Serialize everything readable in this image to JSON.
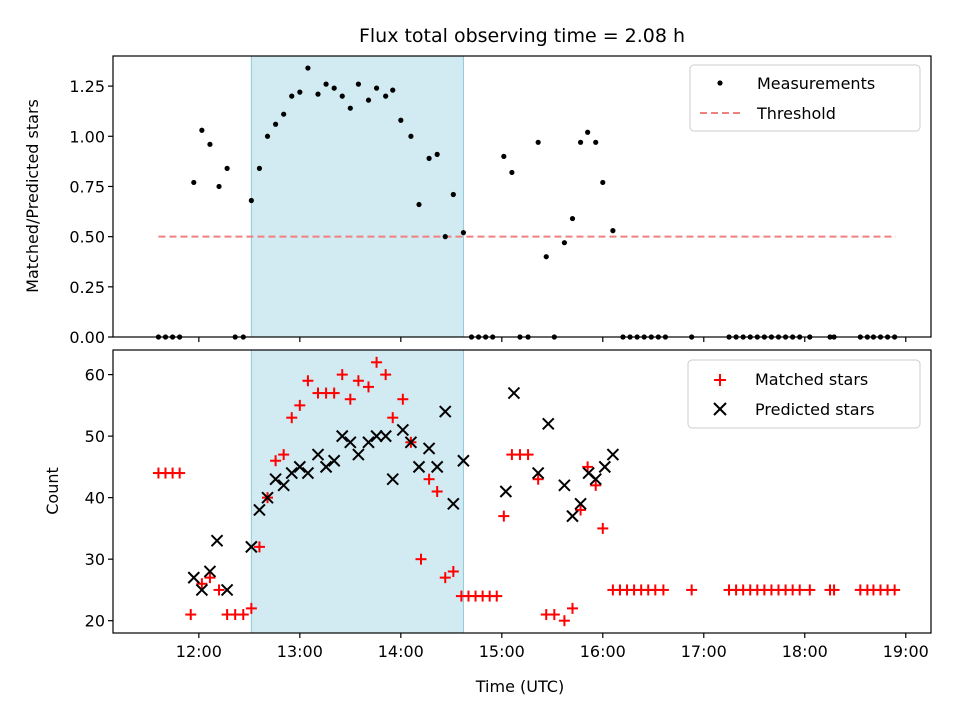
{
  "chart_data": {
    "type": "scatter",
    "title": "Flux total observing time = 2.08 h",
    "xlabel": "Time (UTC)",
    "x_unit": "hours",
    "x_range": [
      11.15,
      19.25
    ],
    "x_ticks": [
      {
        "v": 12,
        "label": "12:00"
      },
      {
        "v": 13,
        "label": "13:00"
      },
      {
        "v": 14,
        "label": "14:00"
      },
      {
        "v": 15,
        "label": "15:00"
      },
      {
        "v": 16,
        "label": "16:00"
      },
      {
        "v": 17,
        "label": "17:00"
      },
      {
        "v": 18,
        "label": "18:00"
      },
      {
        "v": 19,
        "label": "19:00"
      }
    ],
    "shaded_span": [
      12.52,
      14.62
    ],
    "colors": {
      "measurements": "#000000",
      "threshold": "#f08080",
      "matched": "#ff0000",
      "predicted": "#000000",
      "span": "#add8e6"
    },
    "panels": [
      {
        "ylabel": "Matched/Predicted stars",
        "ylim": [
          0,
          1.4
        ],
        "y_ticks": [
          {
            "v": 0,
            "label": "0.00"
          },
          {
            "v": 0.25,
            "label": "0.25"
          },
          {
            "v": 0.5,
            "label": "0.50"
          },
          {
            "v": 0.75,
            "label": "0.75"
          },
          {
            "v": 1.0,
            "label": "1.00"
          },
          {
            "v": 1.25,
            "label": "1.25"
          }
        ],
        "legend": [
          "Measurements",
          "Threshold"
        ],
        "threshold": {
          "x": [
            11.6,
            18.9
          ],
          "y": 0.5
        },
        "measurements": [
          [
            11.6,
            0
          ],
          [
            11.67,
            0
          ],
          [
            11.74,
            0
          ],
          [
            11.81,
            0
          ],
          [
            11.95,
            0.77
          ],
          [
            12.03,
            1.03
          ],
          [
            12.11,
            0.96
          ],
          [
            12.2,
            0.75
          ],
          [
            12.28,
            0.84
          ],
          [
            12.36,
            0
          ],
          [
            12.44,
            0
          ],
          [
            12.52,
            0.68
          ],
          [
            12.6,
            0.84
          ],
          [
            12.68,
            1.0
          ],
          [
            12.76,
            1.06
          ],
          [
            12.84,
            1.11
          ],
          [
            12.92,
            1.2
          ],
          [
            13.0,
            1.22
          ],
          [
            13.08,
            1.34
          ],
          [
            13.18,
            1.21
          ],
          [
            13.26,
            1.26
          ],
          [
            13.34,
            1.24
          ],
          [
            13.42,
            1.2
          ],
          [
            13.5,
            1.14
          ],
          [
            13.58,
            1.26
          ],
          [
            13.68,
            1.18
          ],
          [
            13.76,
            1.24
          ],
          [
            13.85,
            1.2
          ],
          [
            13.92,
            1.23
          ],
          [
            14.0,
            1.08
          ],
          [
            14.1,
            1.0
          ],
          [
            14.18,
            0.66
          ],
          [
            14.28,
            0.89
          ],
          [
            14.36,
            0.91
          ],
          [
            14.44,
            0.5
          ],
          [
            14.52,
            0.71
          ],
          [
            14.62,
            0.52
          ],
          [
            14.7,
            0
          ],
          [
            14.77,
            0
          ],
          [
            14.84,
            0
          ],
          [
            14.91,
            0
          ],
          [
            15.02,
            0.9
          ],
          [
            15.1,
            0.82
          ],
          [
            15.18,
            0
          ],
          [
            15.26,
            0
          ],
          [
            15.36,
            0.97
          ],
          [
            15.44,
            0.4
          ],
          [
            15.52,
            0
          ],
          [
            15.62,
            0.47
          ],
          [
            15.7,
            0.59
          ],
          [
            15.78,
            0.97
          ],
          [
            15.85,
            1.02
          ],
          [
            15.93,
            0.97
          ],
          [
            16.0,
            0.77
          ],
          [
            16.1,
            0.53
          ],
          [
            16.2,
            0
          ],
          [
            16.27,
            0
          ],
          [
            16.34,
            0
          ],
          [
            16.41,
            0
          ],
          [
            16.48,
            0
          ],
          [
            16.55,
            0
          ],
          [
            16.62,
            0
          ],
          [
            16.88,
            0
          ],
          [
            17.25,
            0
          ],
          [
            17.32,
            0
          ],
          [
            17.39,
            0
          ],
          [
            17.46,
            0
          ],
          [
            17.53,
            0
          ],
          [
            17.6,
            0
          ],
          [
            17.67,
            0
          ],
          [
            17.74,
            0
          ],
          [
            17.81,
            0
          ],
          [
            17.88,
            0
          ],
          [
            17.95,
            0
          ],
          [
            18.05,
            0
          ],
          [
            18.25,
            0
          ],
          [
            18.29,
            0
          ],
          [
            18.55,
            0
          ],
          [
            18.62,
            0
          ],
          [
            18.68,
            0
          ],
          [
            18.75,
            0
          ],
          [
            18.82,
            0
          ],
          [
            18.89,
            0
          ]
        ]
      },
      {
        "ylabel": "Count",
        "ylim": [
          18,
          64
        ],
        "y_ticks": [
          {
            "v": 20,
            "label": "20"
          },
          {
            "v": 30,
            "label": "30"
          },
          {
            "v": 40,
            "label": "40"
          },
          {
            "v": 50,
            "label": "50"
          },
          {
            "v": 60,
            "label": "60"
          }
        ],
        "legend": [
          "Matched stars",
          "Predicted stars"
        ],
        "matched": [
          [
            11.6,
            44
          ],
          [
            11.67,
            44
          ],
          [
            11.74,
            44
          ],
          [
            11.81,
            44
          ],
          [
            11.92,
            21
          ],
          [
            12.03,
            26
          ],
          [
            12.11,
            27
          ],
          [
            12.2,
            25
          ],
          [
            12.28,
            21
          ],
          [
            12.36,
            21
          ],
          [
            12.44,
            21
          ],
          [
            12.52,
            22
          ],
          [
            12.6,
            32
          ],
          [
            12.68,
            40
          ],
          [
            12.76,
            46
          ],
          [
            12.84,
            47
          ],
          [
            12.92,
            53
          ],
          [
            13.0,
            55
          ],
          [
            13.08,
            59
          ],
          [
            13.18,
            57
          ],
          [
            13.26,
            57
          ],
          [
            13.34,
            57
          ],
          [
            13.42,
            60
          ],
          [
            13.5,
            56
          ],
          [
            13.58,
            59
          ],
          [
            13.68,
            58
          ],
          [
            13.76,
            62
          ],
          [
            13.85,
            60
          ],
          [
            13.92,
            53
          ],
          [
            14.02,
            56
          ],
          [
            14.1,
            49
          ],
          [
            14.2,
            30
          ],
          [
            14.28,
            43
          ],
          [
            14.36,
            41
          ],
          [
            14.44,
            27
          ],
          [
            14.52,
            28
          ],
          [
            14.6,
            24
          ],
          [
            14.67,
            24
          ],
          [
            14.74,
            24
          ],
          [
            14.81,
            24
          ],
          [
            14.88,
            24
          ],
          [
            14.95,
            24
          ],
          [
            15.02,
            37
          ],
          [
            15.1,
            47
          ],
          [
            15.18,
            47
          ],
          [
            15.26,
            47
          ],
          [
            15.36,
            43
          ],
          [
            15.44,
            21
          ],
          [
            15.52,
            21
          ],
          [
            15.62,
            20
          ],
          [
            15.7,
            22
          ],
          [
            15.78,
            38
          ],
          [
            15.85,
            45
          ],
          [
            15.93,
            42
          ],
          [
            16.0,
            35
          ],
          [
            16.1,
            25
          ],
          [
            16.17,
            25
          ],
          [
            16.24,
            25
          ],
          [
            16.31,
            25
          ],
          [
            16.38,
            25
          ],
          [
            16.45,
            25
          ],
          [
            16.52,
            25
          ],
          [
            16.6,
            25
          ],
          [
            16.88,
            25
          ],
          [
            17.25,
            25
          ],
          [
            17.32,
            25
          ],
          [
            17.39,
            25
          ],
          [
            17.46,
            25
          ],
          [
            17.53,
            25
          ],
          [
            17.6,
            25
          ],
          [
            17.67,
            25
          ],
          [
            17.74,
            25
          ],
          [
            17.81,
            25
          ],
          [
            17.88,
            25
          ],
          [
            17.95,
            25
          ],
          [
            18.05,
            25
          ],
          [
            18.25,
            25
          ],
          [
            18.29,
            25
          ],
          [
            18.55,
            25
          ],
          [
            18.62,
            25
          ],
          [
            18.68,
            25
          ],
          [
            18.75,
            25
          ],
          [
            18.82,
            25
          ],
          [
            18.89,
            25
          ]
        ],
        "predicted": [
          [
            11.95,
            27
          ],
          [
            12.03,
            25
          ],
          [
            12.11,
            28
          ],
          [
            12.18,
            33
          ],
          [
            12.28,
            25
          ],
          [
            12.52,
            32
          ],
          [
            12.6,
            38
          ],
          [
            12.68,
            40
          ],
          [
            12.76,
            43
          ],
          [
            12.84,
            42
          ],
          [
            12.92,
            44
          ],
          [
            13.0,
            45
          ],
          [
            13.08,
            44
          ],
          [
            13.18,
            47
          ],
          [
            13.26,
            45
          ],
          [
            13.34,
            46
          ],
          [
            13.42,
            50
          ],
          [
            13.5,
            49
          ],
          [
            13.58,
            47
          ],
          [
            13.68,
            49
          ],
          [
            13.76,
            50
          ],
          [
            13.85,
            50
          ],
          [
            13.92,
            43
          ],
          [
            14.02,
            51
          ],
          [
            14.1,
            49
          ],
          [
            14.18,
            45
          ],
          [
            14.28,
            48
          ],
          [
            14.36,
            45
          ],
          [
            14.44,
            54
          ],
          [
            14.52,
            39
          ],
          [
            14.62,
            46
          ],
          [
            15.04,
            41
          ],
          [
            15.12,
            57
          ],
          [
            15.36,
            44
          ],
          [
            15.46,
            52
          ],
          [
            15.62,
            42
          ],
          [
            15.7,
            37
          ],
          [
            15.78,
            39
          ],
          [
            15.86,
            44
          ],
          [
            15.93,
            43
          ],
          [
            16.02,
            45
          ],
          [
            16.1,
            47
          ]
        ]
      }
    ]
  }
}
